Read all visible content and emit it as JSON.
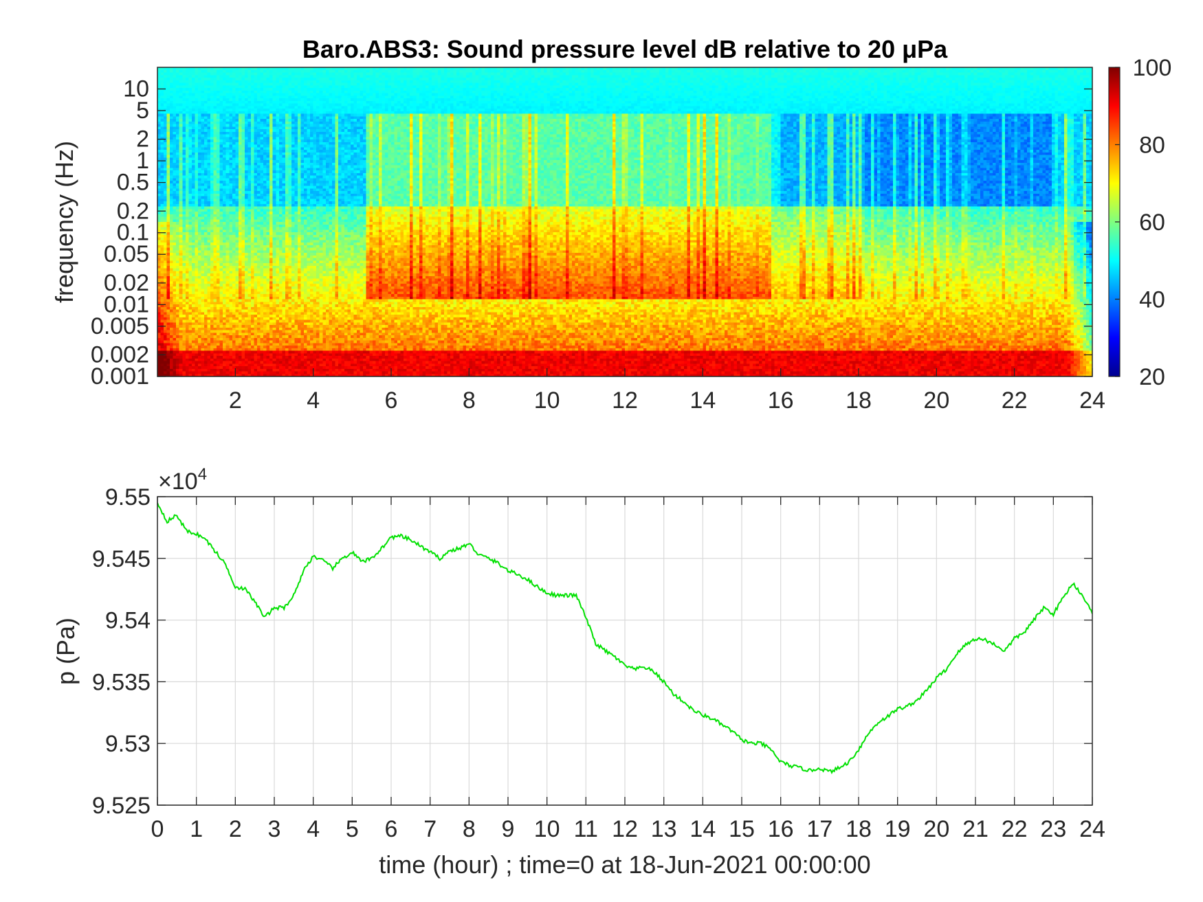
{
  "chart_data": [
    {
      "type": "heatmap",
      "title": "Baro.ABS3: Sound pressure level dB relative to 20 μPa",
      "xlabel": "",
      "ylabel": "frequency (Hz)",
      "xlim": [
        0,
        24
      ],
      "x_ticks": [
        2,
        4,
        6,
        8,
        10,
        12,
        14,
        16,
        18,
        20,
        22,
        24
      ],
      "x_tick_labels": [
        "2",
        "4",
        "6",
        "8",
        "10",
        "12",
        "14",
        "16",
        "18",
        "20",
        "22",
        "24"
      ],
      "y_scale": "log",
      "ylim": [
        0.001,
        20
      ],
      "y_ticks": [
        0.001,
        0.002,
        0.005,
        0.01,
        0.02,
        0.05,
        0.1,
        0.2,
        0.5,
        1,
        2,
        5,
        10
      ],
      "y_tick_labels": [
        "0.001",
        "0.002",
        "0.005",
        "0.01",
        "0.02",
        "0.05",
        "0.1",
        "0.2",
        "0.5",
        "1",
        "2",
        "5",
        "10"
      ],
      "colorbar": {
        "colormap": "jet",
        "range": [
          20,
          100
        ],
        "ticks": [
          20,
          40,
          60,
          80,
          100
        ],
        "tick_labels": [
          "20",
          "40",
          "60",
          "80",
          "100"
        ]
      },
      "grid": false
    },
    {
      "type": "line",
      "title": "",
      "xlabel": "time (hour) ; time=0 at 18-Jun-2021 00:00:00",
      "ylabel": "p (Pa)",
      "y_multiplier_label": "×10",
      "y_multiplier_exponent": "4",
      "xlim": [
        0,
        24
      ],
      "ylim": [
        95250,
        95500
      ],
      "x_ticks": [
        0,
        1,
        2,
        3,
        4,
        5,
        6,
        7,
        8,
        9,
        10,
        11,
        12,
        13,
        14,
        15,
        16,
        17,
        18,
        19,
        20,
        21,
        22,
        23,
        24
      ],
      "x_tick_labels": [
        "0",
        "1",
        "2",
        "3",
        "4",
        "5",
        "6",
        "7",
        "8",
        "9",
        "10",
        "11",
        "12",
        "13",
        "14",
        "15",
        "16",
        "17",
        "18",
        "19",
        "20",
        "21",
        "22",
        "23",
        "24"
      ],
      "y_ticks": [
        95250,
        95300,
        95350,
        95400,
        95450,
        95500
      ],
      "y_tick_labels": [
        "9.525",
        "9.53",
        "9.535",
        "9.54",
        "9.545",
        "9.55"
      ],
      "grid": true,
      "series": [
        {
          "color": "#00e000",
          "x": [
            0,
            0.25,
            0.5,
            0.75,
            1,
            1.25,
            1.5,
            1.75,
            2,
            2.25,
            2.5,
            2.75,
            3,
            3.25,
            3.5,
            3.75,
            4,
            4.25,
            4.5,
            4.75,
            5,
            5.25,
            5.5,
            5.75,
            6,
            6.25,
            6.5,
            6.75,
            7,
            7.25,
            7.5,
            7.75,
            8,
            8.25,
            8.5,
            8.75,
            9,
            9.25,
            9.5,
            9.75,
            10,
            10.25,
            10.5,
            10.75,
            11,
            11.25,
            11.5,
            11.75,
            12,
            12.25,
            12.5,
            12.75,
            13,
            13.25,
            13.5,
            13.75,
            14,
            14.25,
            14.5,
            14.75,
            15,
            15.25,
            15.5,
            15.75,
            16,
            16.25,
            16.5,
            16.75,
            17,
            17.25,
            17.5,
            17.75,
            18,
            18.25,
            18.5,
            18.75,
            19,
            19.25,
            19.5,
            19.75,
            20,
            20.25,
            20.5,
            20.75,
            21,
            21.25,
            21.5,
            21.75,
            22,
            22.25,
            22.5,
            22.75,
            23,
            23.25,
            23.5,
            23.75,
            24
          ],
          "y": [
            95495,
            95480,
            95485,
            95472,
            95470,
            95465,
            95455,
            95445,
            95427,
            95425,
            95415,
            95402,
            95410,
            95410,
            95420,
            95440,
            95452,
            95448,
            95442,
            95450,
            95455,
            95447,
            95450,
            95458,
            95467,
            95468,
            95465,
            95460,
            95455,
            95450,
            95456,
            95458,
            95462,
            95453,
            95450,
            95446,
            95440,
            95437,
            95433,
            95427,
            95422,
            95420,
            95420,
            95420,
            95402,
            95381,
            95375,
            95370,
            95363,
            95360,
            95362,
            95358,
            95350,
            95340,
            95334,
            95327,
            95323,
            95320,
            95315,
            95310,
            95303,
            95300,
            95300,
            95295,
            95285,
            95282,
            95280,
            95278,
            95280,
            95277,
            95280,
            95285,
            95295,
            95308,
            95317,
            95322,
            95328,
            95330,
            95335,
            95343,
            95353,
            95360,
            95372,
            95380,
            95385,
            95384,
            95380,
            95375,
            95385,
            95390,
            95400,
            95410,
            95405,
            95418,
            95430,
            95420,
            95405
          ]
        }
      ]
    }
  ]
}
